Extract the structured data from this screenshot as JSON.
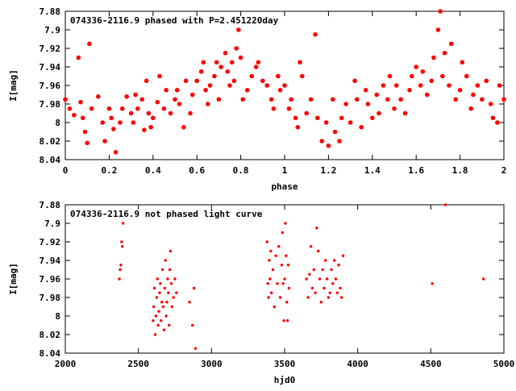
{
  "chart_data": [
    {
      "type": "scatter",
      "title": "074336-2116.9 phased with P=2.451220day",
      "xlabel": "phase",
      "ylabel": "I[mag]",
      "xlim": [
        0,
        2
      ],
      "ylim": [
        8.04,
        7.88
      ],
      "y_inverted": true,
      "xticks": [
        0,
        0.2,
        0.4,
        0.6,
        0.8,
        1,
        1.2,
        1.4,
        1.6,
        1.8,
        2
      ],
      "xtick_labels": [
        "0",
        "0.2",
        "0.4",
        "0.6",
        "0.8",
        "1",
        "1.2",
        "1.4",
        "1.6",
        "1.8",
        "2"
      ],
      "yticks": [
        7.88,
        7.9,
        7.92,
        7.94,
        7.96,
        7.98,
        8.0,
        8.02,
        8.04
      ],
      "ytick_labels": [
        "7.88",
        "7.9",
        "7.92",
        "7.94",
        "7.96",
        "7.98",
        "8",
        "8.02",
        "8.04"
      ],
      "grid": false,
      "marker_color": "#ff0000",
      "marker": "circle",
      "points": [
        [
          0.0,
          7.975
        ],
        [
          0.02,
          7.985
        ],
        [
          0.04,
          7.992
        ],
        [
          0.06,
          7.93
        ],
        [
          0.07,
          7.978
        ],
        [
          0.08,
          7.995
        ],
        [
          0.09,
          8.01
        ],
        [
          0.1,
          8.022
        ],
        [
          0.11,
          7.915
        ],
        [
          0.12,
          7.985
        ],
        [
          0.15,
          7.972
        ],
        [
          0.17,
          8.0
        ],
        [
          0.18,
          8.02
        ],
        [
          0.2,
          7.985
        ],
        [
          0.21,
          7.995
        ],
        [
          0.22,
          8.007
        ],
        [
          0.23,
          8.032
        ],
        [
          0.25,
          8.0
        ],
        [
          0.26,
          7.985
        ],
        [
          0.28,
          7.972
        ],
        [
          0.3,
          7.99
        ],
        [
          0.31,
          8.0
        ],
        [
          0.32,
          7.97
        ],
        [
          0.33,
          7.985
        ],
        [
          0.35,
          7.975
        ],
        [
          0.36,
          8.008
        ],
        [
          0.37,
          7.955
        ],
        [
          0.38,
          7.99
        ],
        [
          0.39,
          8.005
        ],
        [
          0.4,
          7.995
        ],
        [
          0.42,
          7.978
        ],
        [
          0.43,
          7.95
        ],
        [
          0.45,
          7.985
        ],
        [
          0.46,
          7.965
        ],
        [
          0.48,
          7.99
        ],
        [
          0.5,
          7.975
        ],
        [
          0.51,
          7.965
        ],
        [
          0.52,
          7.98
        ],
        [
          0.54,
          8.005
        ],
        [
          0.55,
          7.955
        ],
        [
          0.57,
          7.99
        ],
        [
          0.58,
          7.97
        ],
        [
          0.6,
          7.955
        ],
        [
          0.62,
          7.945
        ],
        [
          0.63,
          7.935
        ],
        [
          0.64,
          7.965
        ],
        [
          0.65,
          7.98
        ],
        [
          0.66,
          7.96
        ],
        [
          0.68,
          7.95
        ],
        [
          0.69,
          7.935
        ],
        [
          0.7,
          7.975
        ],
        [
          0.71,
          7.94
        ],
        [
          0.73,
          7.925
        ],
        [
          0.74,
          7.945
        ],
        [
          0.75,
          7.96
        ],
        [
          0.76,
          7.935
        ],
        [
          0.77,
          7.955
        ],
        [
          0.78,
          7.92
        ],
        [
          0.79,
          7.9
        ],
        [
          0.8,
          7.93
        ],
        [
          0.81,
          7.975
        ],
        [
          0.83,
          7.965
        ],
        [
          0.85,
          7.95
        ],
        [
          0.87,
          7.94
        ],
        [
          0.88,
          7.935
        ],
        [
          0.9,
          7.955
        ],
        [
          0.92,
          7.96
        ],
        [
          0.94,
          7.975
        ],
        [
          0.95,
          7.985
        ],
        [
          0.97,
          7.95
        ],
        [
          0.98,
          7.965
        ],
        [
          1.0,
          7.96
        ],
        [
          1.02,
          7.985
        ],
        [
          1.03,
          7.975
        ],
        [
          1.05,
          7.995
        ],
        [
          1.06,
          8.005
        ],
        [
          1.07,
          7.935
        ],
        [
          1.08,
          7.95
        ],
        [
          1.1,
          7.99
        ],
        [
          1.12,
          7.975
        ],
        [
          1.14,
          7.905
        ],
        [
          1.15,
          7.995
        ],
        [
          1.17,
          8.02
        ],
        [
          1.19,
          8.0
        ],
        [
          1.2,
          8.025
        ],
        [
          1.22,
          7.975
        ],
        [
          1.23,
          8.01
        ],
        [
          1.25,
          8.02
        ],
        [
          1.26,
          7.995
        ],
        [
          1.28,
          7.98
        ],
        [
          1.3,
          8.0
        ],
        [
          1.32,
          7.955
        ],
        [
          1.33,
          7.975
        ],
        [
          1.35,
          8.005
        ],
        [
          1.37,
          7.965
        ],
        [
          1.38,
          7.98
        ],
        [
          1.4,
          7.995
        ],
        [
          1.42,
          7.97
        ],
        [
          1.43,
          7.99
        ],
        [
          1.45,
          7.96
        ],
        [
          1.47,
          7.975
        ],
        [
          1.48,
          7.95
        ],
        [
          1.5,
          7.985
        ],
        [
          1.51,
          7.96
        ],
        [
          1.53,
          7.975
        ],
        [
          1.55,
          7.99
        ],
        [
          1.57,
          7.965
        ],
        [
          1.58,
          7.95
        ],
        [
          1.6,
          7.94
        ],
        [
          1.62,
          7.96
        ],
        [
          1.63,
          7.945
        ],
        [
          1.65,
          7.97
        ],
        [
          1.67,
          7.955
        ],
        [
          1.68,
          7.93
        ],
        [
          1.7,
          7.9
        ],
        [
          1.71,
          7.88
        ],
        [
          1.72,
          7.95
        ],
        [
          1.73,
          7.925
        ],
        [
          1.75,
          7.96
        ],
        [
          1.76,
          7.915
        ],
        [
          1.78,
          7.975
        ],
        [
          1.8,
          7.965
        ],
        [
          1.81,
          7.935
        ],
        [
          1.83,
          7.95
        ],
        [
          1.85,
          7.985
        ],
        [
          1.86,
          7.97
        ],
        [
          1.88,
          7.96
        ],
        [
          1.9,
          7.975
        ],
        [
          1.92,
          7.955
        ],
        [
          1.94,
          7.98
        ],
        [
          1.95,
          7.995
        ],
        [
          1.97,
          8.0
        ],
        [
          1.98,
          7.96
        ],
        [
          2.0,
          7.975
        ]
      ]
    },
    {
      "type": "scatter",
      "title": "074336-2116.9 not phased light curve",
      "xlabel": "hjd0",
      "ylabel": "I[mag]",
      "xlim": [
        2000,
        5000
      ],
      "ylim": [
        8.04,
        7.88
      ],
      "y_inverted": true,
      "xticks": [
        2000,
        2500,
        3000,
        3500,
        4000,
        4500,
        5000
      ],
      "xtick_labels": [
        "2000",
        "2500",
        "3000",
        "3500",
        "4000",
        "4500",
        "5000"
      ],
      "yticks": [
        7.88,
        7.9,
        7.92,
        7.94,
        7.96,
        7.98,
        8.0,
        8.02,
        8.04
      ],
      "ytick_labels": [
        "7.88",
        "7.9",
        "7.92",
        "7.94",
        "7.96",
        "7.98",
        "8",
        "8.02",
        "8.04"
      ],
      "grid": false,
      "marker_color": "#ff0000",
      "marker": "dot",
      "points": [
        [
          2370,
          7.96
        ],
        [
          2375,
          7.95
        ],
        [
          2380,
          7.945
        ],
        [
          2385,
          7.92
        ],
        [
          2390,
          7.925
        ],
        [
          2395,
          7.9
        ],
        [
          2600,
          8.005
        ],
        [
          2605,
          7.99
        ],
        [
          2610,
          7.97
        ],
        [
          2615,
          8.02
        ],
        [
          2620,
          8.0
        ],
        [
          2625,
          7.98
        ],
        [
          2630,
          7.96
        ],
        [
          2635,
          8.01
        ],
        [
          2640,
          7.995
        ],
        [
          2645,
          7.975
        ],
        [
          2650,
          7.965
        ],
        [
          2655,
          8.005
        ],
        [
          2660,
          7.985
        ],
        [
          2665,
          7.95
        ],
        [
          2670,
          7.99
        ],
        [
          2675,
          8.015
        ],
        [
          2680,
          7.97
        ],
        [
          2685,
          7.94
        ],
        [
          2690,
          8.0
        ],
        [
          2695,
          7.985
        ],
        [
          2700,
          7.96
        ],
        [
          2705,
          7.975
        ],
        [
          2710,
          8.01
        ],
        [
          2715,
          7.95
        ],
        [
          2720,
          7.93
        ],
        [
          2725,
          7.965
        ],
        [
          2730,
          7.99
        ],
        [
          2740,
          7.98
        ],
        [
          2750,
          7.96
        ],
        [
          2760,
          7.975
        ],
        [
          2850,
          7.985
        ],
        [
          2870,
          8.01
        ],
        [
          2880,
          7.97
        ],
        [
          2890,
          8.035
        ],
        [
          3380,
          7.92
        ],
        [
          3385,
          7.965
        ],
        [
          3390,
          7.98
        ],
        [
          3395,
          7.94
        ],
        [
          3400,
          7.96
        ],
        [
          3405,
          7.93
        ],
        [
          3410,
          7.975
        ],
        [
          3420,
          7.95
        ],
        [
          3430,
          7.99
        ],
        [
          3440,
          7.935
        ],
        [
          3450,
          7.965
        ],
        [
          3460,
          7.925
        ],
        [
          3470,
          7.98
        ],
        [
          3480,
          7.945
        ],
        [
          3485,
          7.91
        ],
        [
          3490,
          7.965
        ],
        [
          3495,
          8.005
        ],
        [
          3500,
          7.96
        ],
        [
          3505,
          7.9
        ],
        [
          3510,
          7.935
        ],
        [
          3515,
          7.985
        ],
        [
          3520,
          8.005
        ],
        [
          3525,
          7.945
        ],
        [
          3530,
          7.97
        ],
        [
          3650,
          7.96
        ],
        [
          3660,
          7.98
        ],
        [
          3670,
          7.955
        ],
        [
          3680,
          7.925
        ],
        [
          3690,
          7.97
        ],
        [
          3700,
          7.95
        ],
        [
          3710,
          7.975
        ],
        [
          3720,
          7.905
        ],
        [
          3730,
          7.93
        ],
        [
          3740,
          7.96
        ],
        [
          3750,
          7.985
        ],
        [
          3760,
          7.95
        ],
        [
          3770,
          7.97
        ],
        [
          3780,
          7.94
        ],
        [
          3790,
          7.96
        ],
        [
          3800,
          7.98
        ],
        [
          3810,
          7.975
        ],
        [
          3820,
          7.95
        ],
        [
          3830,
          7.965
        ],
        [
          3840,
          7.94
        ],
        [
          3850,
          7.96
        ],
        [
          3860,
          7.975
        ],
        [
          3870,
          7.945
        ],
        [
          3880,
          7.97
        ],
        [
          3890,
          7.98
        ],
        [
          3900,
          7.935
        ],
        [
          4510,
          7.965
        ],
        [
          4600,
          7.88
        ],
        [
          4860,
          7.96
        ]
      ]
    }
  ]
}
